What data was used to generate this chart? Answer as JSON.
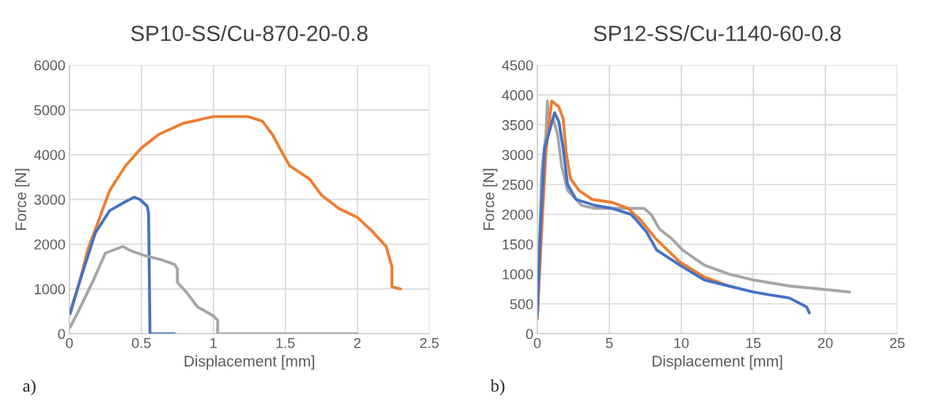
{
  "chart_data": [
    {
      "type": "line",
      "title": "SP10-SS/Cu-870-20-0.8",
      "xlabel": "Displacement [mm]",
      "ylabel": "Force [N]",
      "xlim": [
        0,
        2.5
      ],
      "xticks": [
        0,
        0.5,
        1,
        1.5,
        2,
        2.5
      ],
      "ylim": [
        0,
        6000
      ],
      "yticks": [
        0,
        1000,
        2000,
        3000,
        4000,
        5000,
        6000
      ],
      "grid": true,
      "legend": false,
      "annotations": [
        "a)"
      ],
      "series": [
        {
          "color": "#ed7d31",
          "x": [
            0.006,
            0.07,
            0.13,
            0.2,
            0.28,
            0.39,
            0.5,
            0.62,
            0.79,
            1.0,
            1.24,
            1.34,
            1.41,
            1.46,
            1.53,
            1.67,
            1.75,
            1.87,
            2.0,
            2.1,
            2.2,
            2.24,
            2.24,
            2.3
          ],
          "values": [
            500,
            1150,
            1900,
            2500,
            3200,
            3750,
            4150,
            4450,
            4700,
            4850,
            4850,
            4750,
            4450,
            4150,
            3750,
            3450,
            3100,
            2800,
            2600,
            2300,
            1950,
            1500,
            1050,
            1000
          ]
        },
        {
          "color": "#4472c4",
          "x": [
            0.006,
            0.07,
            0.18,
            0.28,
            0.39,
            0.45,
            0.49,
            0.54,
            0.55,
            0.56,
            0.73
          ],
          "values": [
            450,
            1150,
            2250,
            2750,
            2950,
            3050,
            3000,
            2850,
            2700,
            0,
            0
          ]
        },
        {
          "color": "#a5a5a5",
          "x": [
            0.006,
            0.07,
            0.16,
            0.25,
            0.37,
            0.43,
            0.52,
            0.64,
            0.73,
            0.75,
            0.75,
            0.82,
            0.89,
            1.0,
            1.03,
            1.03,
            2.0
          ],
          "values": [
            150,
            550,
            1150,
            1800,
            1950,
            1850,
            1750,
            1650,
            1550,
            1450,
            1150,
            900,
            600,
            400,
            300,
            0,
            0
          ]
        }
      ]
    },
    {
      "type": "line",
      "title": "SP12-SS/Cu-1140-60-0.8",
      "xlabel": "Displacement [mm]",
      "ylabel": "Force [N]",
      "xlim": [
        0,
        25
      ],
      "xticks": [
        0,
        5,
        10,
        15,
        20,
        25
      ],
      "ylim": [
        0,
        4500
      ],
      "yticks": [
        0,
        500,
        1000,
        1500,
        2000,
        2500,
        3000,
        3500,
        4000,
        4500
      ],
      "grid": true,
      "legend": false,
      "annotations": [
        "b)"
      ],
      "series": [
        {
          "color": "#a5a5a5",
          "x": [
            0,
            0.3,
            0.6,
            0.7,
            0.8,
            1.1,
            1.4,
            1.7,
            2.1,
            3.1,
            4,
            5.2,
            6.3,
            7.4,
            7.9,
            8.5,
            9.3,
            10.1,
            11.6,
            13.3,
            15,
            17.5,
            19.6,
            21.7
          ],
          "values": [
            250,
            2700,
            3350,
            3900,
            3450,
            3600,
            3350,
            2800,
            2400,
            2150,
            2100,
            2100,
            2100,
            2100,
            2000,
            1750,
            1600,
            1400,
            1150,
            1000,
            900,
            800,
            750,
            700
          ]
        },
        {
          "color": "#ed7d31",
          "x": [
            0,
            0.3,
            0.6,
            1.0,
            1.5,
            1.8,
            2.0,
            2.3,
            2.9,
            3.8,
            5.2,
            6.3,
            7.2,
            8.2,
            9.9,
            11.6,
            13.3
          ],
          "values": [
            250,
            1700,
            3050,
            3900,
            3800,
            3600,
            3050,
            2600,
            2400,
            2250,
            2200,
            2100,
            1900,
            1600,
            1200,
            950,
            800
          ]
        },
        {
          "color": "#4472c4",
          "x": [
            0,
            0.2,
            0.5,
            1.2,
            1.5,
            1.8,
            2.1,
            2.7,
            4,
            5.2,
            6.5,
            6.9,
            7.6,
            8.3,
            9.9,
            11.6,
            13.3,
            15,
            16.2,
            17.5,
            18.7,
            18.9
          ],
          "values": [
            300,
            1700,
            3100,
            3700,
            3550,
            3100,
            2500,
            2250,
            2150,
            2100,
            2000,
            1900,
            1700,
            1400,
            1150,
            900,
            800,
            700,
            650,
            600,
            450,
            350
          ]
        }
      ]
    }
  ]
}
